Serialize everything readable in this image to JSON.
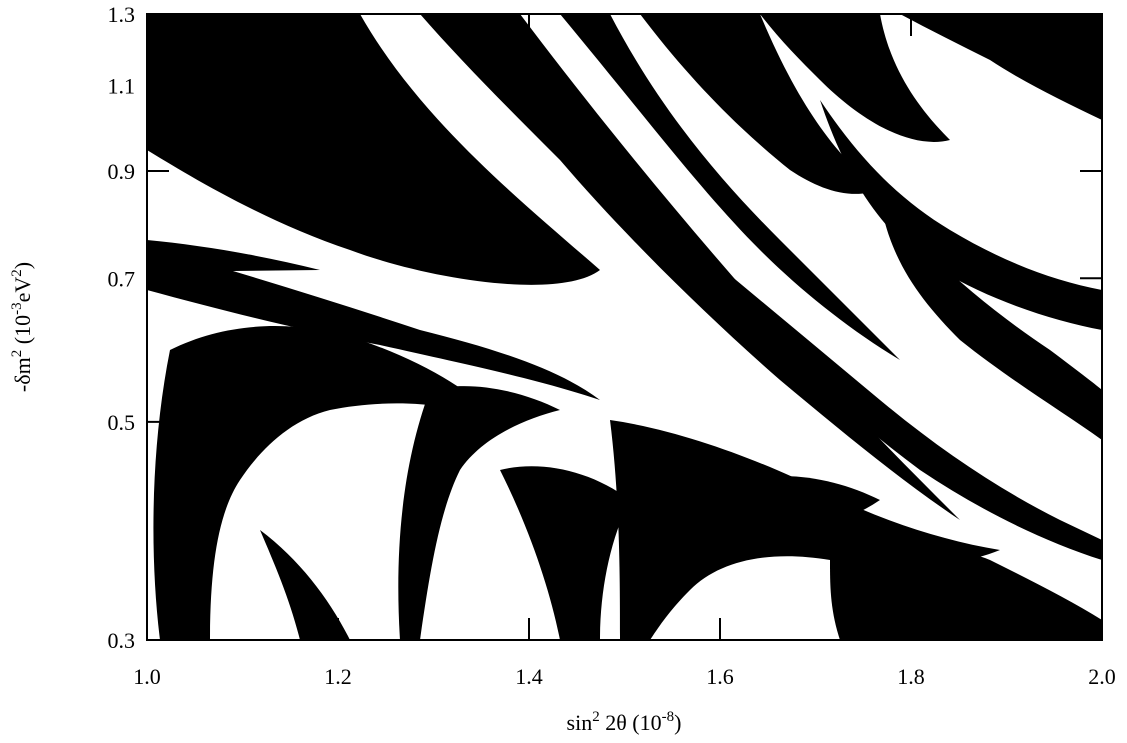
{
  "chart_data": {
    "type": "heatmap",
    "title": "",
    "xlabel": {
      "text_parts": [
        "sin",
        "2",
        " 2θ (10",
        "-8",
        ")"
      ],
      "plain": "sin^2 2θ (10^-8)"
    },
    "ylabel": {
      "text_parts": [
        "-δm",
        "2",
        " (10",
        "-3",
        "eV",
        "2",
        ")"
      ],
      "plain": "-δm^2 (10^-3 eV^2)"
    },
    "xlim": [
      1.0,
      2.0
    ],
    "ylim": [
      0.3,
      1.3
    ],
    "y_scale": "log",
    "x_ticks": [
      {
        "value": 1.0,
        "label": "1.0"
      },
      {
        "value": 1.2,
        "label": "1.2"
      },
      {
        "value": 1.4,
        "label": "1.4"
      },
      {
        "value": 1.6,
        "label": "1.6"
      },
      {
        "value": 1.8,
        "label": "1.8"
      },
      {
        "value": 2.0,
        "label": "2.0"
      }
    ],
    "y_ticks": [
      {
        "value": 0.3,
        "label": "0.3"
      },
      {
        "value": 0.5,
        "label": "0.5"
      },
      {
        "value": 0.7,
        "label": "0.7"
      },
      {
        "value": 0.9,
        "label": "0.9"
      },
      {
        "value": 1.1,
        "label": "1.1"
      },
      {
        "value": 1.3,
        "label": "1.3"
      }
    ],
    "colors": {
      "region_a": "#000000",
      "region_b": "#ffffff",
      "frame": "#000000"
    },
    "grid": false,
    "legend": "none"
  }
}
